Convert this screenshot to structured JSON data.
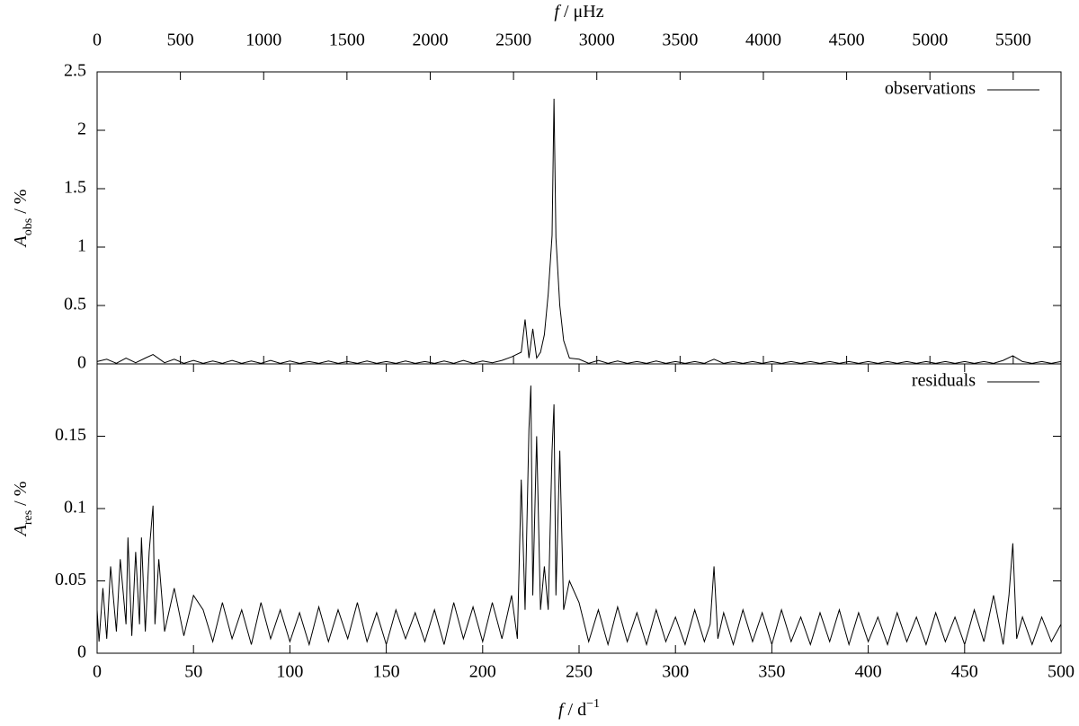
{
  "chart_data": [
    {
      "type": "line",
      "x2label": {
        "symbol": "f",
        "unit": "/ μHz"
      },
      "x2lim": [
        0,
        5787.04
      ],
      "x2ticks": [
        0,
        500,
        1000,
        1500,
        2000,
        2500,
        3000,
        3500,
        4000,
        4500,
        5000,
        5500
      ],
      "ylabel": {
        "symbol": "A",
        "subscript": "obs",
        "unit": "/ %"
      },
      "xlim": [
        0,
        500
      ],
      "ylim": [
        0,
        2.5
      ],
      "yticks": [
        0,
        0.5,
        1,
        1.5,
        2,
        2.5
      ],
      "legend": "upper right",
      "x": [
        0,
        5,
        10,
        15,
        20,
        25,
        29,
        35,
        40,
        45,
        50,
        55,
        60,
        65,
        70,
        75,
        80,
        85,
        90,
        95,
        100,
        105,
        110,
        115,
        120,
        125,
        130,
        135,
        140,
        145,
        150,
        155,
        160,
        165,
        170,
        175,
        180,
        185,
        190,
        195,
        200,
        205,
        210,
        215,
        220,
        222,
        224,
        226,
        228,
        230,
        232,
        234,
        236,
        237,
        238,
        240,
        242,
        245,
        250,
        255,
        260,
        265,
        270,
        275,
        280,
        285,
        290,
        295,
        300,
        305,
        310,
        315,
        320,
        325,
        330,
        335,
        340,
        345,
        350,
        355,
        360,
        365,
        370,
        375,
        380,
        385,
        390,
        395,
        400,
        405,
        410,
        415,
        420,
        425,
        430,
        435,
        440,
        445,
        450,
        455,
        460,
        465,
        470,
        475,
        480,
        485,
        490,
        495,
        500
      ],
      "series": [
        {
          "name": "observations",
          "color": "#000000",
          "values": [
            0.02,
            0.04,
            0.005,
            0.05,
            0.01,
            0.05,
            0.08,
            0.01,
            0.04,
            0.005,
            0.03,
            0.005,
            0.025,
            0.005,
            0.03,
            0.005,
            0.025,
            0.005,
            0.03,
            0.005,
            0.025,
            0.005,
            0.02,
            0.005,
            0.025,
            0.005,
            0.02,
            0.005,
            0.025,
            0.005,
            0.02,
            0.005,
            0.025,
            0.005,
            0.02,
            0.005,
            0.025,
            0.005,
            0.03,
            0.005,
            0.025,
            0.01,
            0.03,
            0.06,
            0.1,
            0.38,
            0.05,
            0.3,
            0.05,
            0.1,
            0.25,
            0.6,
            1.1,
            2.27,
            1.08,
            0.5,
            0.2,
            0.05,
            0.04,
            0.005,
            0.03,
            0.005,
            0.025,
            0.005,
            0.02,
            0.005,
            0.025,
            0.005,
            0.02,
            0.005,
            0.02,
            0.005,
            0.04,
            0.005,
            0.02,
            0.005,
            0.02,
            0.005,
            0.02,
            0.005,
            0.02,
            0.005,
            0.02,
            0.005,
            0.02,
            0.005,
            0.02,
            0.005,
            0.02,
            0.005,
            0.02,
            0.005,
            0.02,
            0.005,
            0.02,
            0.005,
            0.02,
            0.005,
            0.02,
            0.005,
            0.02,
            0.005,
            0.03,
            0.07,
            0.02,
            0.005,
            0.02,
            0.005,
            0.02
          ]
        }
      ]
    },
    {
      "type": "line",
      "xlabel": {
        "symbol": "f",
        "unit": "/ d",
        "superscript": "−1"
      },
      "xlim": [
        0,
        500
      ],
      "xticks": [
        0,
        50,
        100,
        150,
        200,
        250,
        300,
        350,
        400,
        450,
        500
      ],
      "ylabel": {
        "symbol": "A",
        "subscript": "res",
        "unit": "/ %"
      },
      "ylim": [
        0,
        0.2
      ],
      "yticks": [
        0,
        0.05,
        0.1,
        0.15
      ],
      "legend": "upper right",
      "x": [
        0,
        1,
        3,
        5,
        7,
        10,
        12,
        15,
        16,
        18,
        20,
        22,
        23,
        25,
        27,
        29,
        30,
        32,
        35,
        40,
        45,
        50,
        55,
        60,
        65,
        70,
        75,
        80,
        85,
        90,
        95,
        100,
        105,
        110,
        115,
        120,
        125,
        130,
        135,
        140,
        145,
        150,
        155,
        160,
        165,
        170,
        175,
        180,
        185,
        190,
        195,
        200,
        205,
        210,
        215,
        218,
        220,
        222,
        224,
        225,
        226,
        228,
        230,
        232,
        234,
        236,
        237,
        238,
        240,
        242,
        245,
        250,
        255,
        260,
        265,
        270,
        275,
        280,
        285,
        290,
        295,
        300,
        305,
        310,
        315,
        318,
        320,
        322,
        325,
        330,
        335,
        340,
        345,
        350,
        355,
        360,
        365,
        370,
        375,
        380,
        385,
        390,
        395,
        400,
        405,
        410,
        415,
        420,
        425,
        430,
        435,
        440,
        445,
        450,
        455,
        460,
        465,
        470,
        473,
        475,
        477,
        480,
        485,
        490,
        495,
        500
      ],
      "series": [
        {
          "name": "residuals",
          "color": "#000000",
          "values": [
            0.03,
            0.008,
            0.045,
            0.01,
            0.06,
            0.015,
            0.065,
            0.02,
            0.08,
            0.012,
            0.07,
            0.02,
            0.08,
            0.015,
            0.07,
            0.102,
            0.02,
            0.065,
            0.015,
            0.045,
            0.012,
            0.04,
            0.03,
            0.008,
            0.035,
            0.01,
            0.03,
            0.006,
            0.035,
            0.01,
            0.03,
            0.008,
            0.028,
            0.006,
            0.032,
            0.008,
            0.03,
            0.01,
            0.035,
            0.008,
            0.028,
            0.006,
            0.03,
            0.01,
            0.028,
            0.008,
            0.03,
            0.006,
            0.035,
            0.01,
            0.032,
            0.008,
            0.035,
            0.01,
            0.04,
            0.01,
            0.12,
            0.03,
            0.155,
            0.185,
            0.04,
            0.15,
            0.03,
            0.06,
            0.03,
            0.14,
            0.172,
            0.04,
            0.14,
            0.03,
            0.05,
            0.035,
            0.008,
            0.03,
            0.006,
            0.032,
            0.008,
            0.028,
            0.006,
            0.03,
            0.008,
            0.025,
            0.006,
            0.03,
            0.008,
            0.02,
            0.06,
            0.01,
            0.028,
            0.006,
            0.03,
            0.008,
            0.028,
            0.006,
            0.03,
            0.008,
            0.025,
            0.006,
            0.028,
            0.008,
            0.03,
            0.006,
            0.028,
            0.008,
            0.025,
            0.006,
            0.028,
            0.008,
            0.025,
            0.006,
            0.028,
            0.008,
            0.025,
            0.006,
            0.03,
            0.008,
            0.04,
            0.006,
            0.04,
            0.076,
            0.01,
            0.025,
            0.006,
            0.025,
            0.008,
            0.02
          ]
        }
      ]
    }
  ]
}
